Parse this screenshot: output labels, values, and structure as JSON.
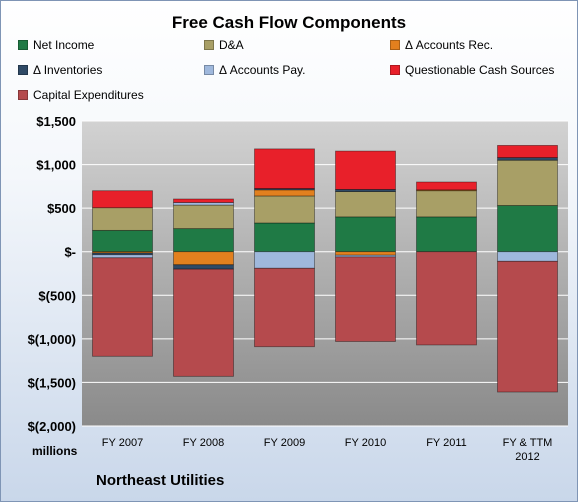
{
  "chart_data": {
    "type": "bar",
    "stacked": true,
    "title": "Free Cash Flow Components",
    "ylabel": "millions",
    "ylim": [
      -2000,
      1500
    ],
    "y_ticks": [
      1500,
      1000,
      500,
      0,
      -500,
      -1000,
      -1500,
      -2000
    ],
    "y_tick_labels": [
      "$1,500",
      "$1,000",
      "$500",
      "$-",
      "$(500)",
      "$(1,000)",
      "$(1,500)",
      "$(2,000)"
    ],
    "categories": [
      "FY 2007",
      "FY 2008",
      "FY 2009",
      "FY 2010",
      "FY 2011",
      "FY & TTM 2012"
    ],
    "grid": true,
    "legend_position": "top",
    "series": [
      {
        "name": "Net Income",
        "color": "#1f7a45",
        "values": [
          245,
          265,
          330,
          400,
          400,
          530
        ]
      },
      {
        "name": "D&A",
        "color": "#a89f66",
        "values": [
          260,
          270,
          310,
          290,
          300,
          520
        ]
      },
      {
        "name": "Δ Accounts Rec.",
        "color": "#e2801e",
        "values": [
          -15,
          -150,
          70,
          -40,
          10,
          0
        ]
      },
      {
        "name": "Δ Inventories",
        "color": "#2f4a66",
        "values": [
          -20,
          -50,
          15,
          25,
          0,
          30
        ]
      },
      {
        "name": "Δ Accounts Pay.",
        "color": "#9fb8dc",
        "values": [
          -35,
          30,
          -190,
          -20,
          0,
          -110
        ]
      },
      {
        "name": "Questionable Cash Sources",
        "color": "#e8202a",
        "values": [
          195,
          40,
          455,
          440,
          90,
          140
        ]
      },
      {
        "name": "Capital Expenditures",
        "color": "#b54a4d",
        "values": [
          -1130,
          -1230,
          -900,
          -970,
          -1070,
          -1500
        ]
      }
    ]
  },
  "company": "Northeast Utilities",
  "units_label": "millions"
}
